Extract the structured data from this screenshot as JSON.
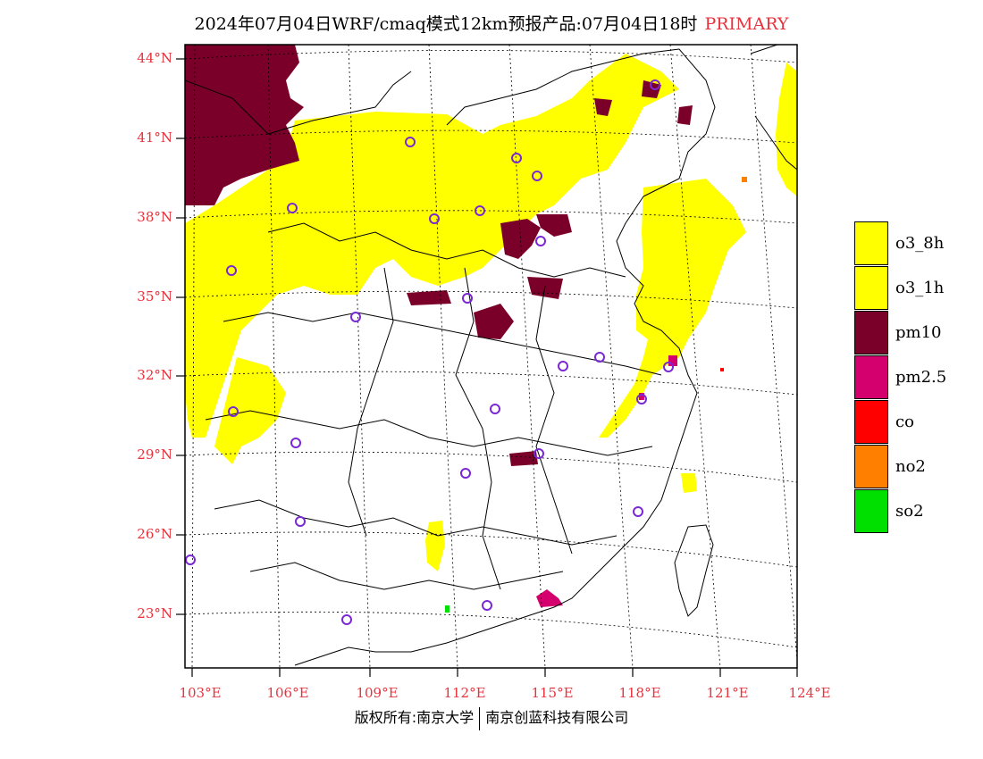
{
  "title": {
    "main": "2024年07月04日WRF/cmaq模式12km预报产品:07月04日18时",
    "tag": "PRIMARY"
  },
  "axes": {
    "lat_labels": [
      "44°N",
      "41°N",
      "38°N",
      "35°N",
      "32°N",
      "29°N",
      "26°N",
      "23°N"
    ],
    "lon_labels": [
      "103°E",
      "106°E",
      "109°E",
      "112°E",
      "115°E",
      "118°E",
      "121°E",
      "124°E"
    ]
  },
  "legend": [
    {
      "label": "o3_8h",
      "color": "#ffff00"
    },
    {
      "label": "o3_1h",
      "color": "#ffff00"
    },
    {
      "label": "pm10",
      "color": "#7a0029"
    },
    {
      "label": "pm2.5",
      "color": "#d4006e"
    },
    {
      "label": "co",
      "color": "#ff0000"
    },
    {
      "label": "no2",
      "color": "#ff7f00"
    },
    {
      "label": "so2",
      "color": "#00e000"
    }
  ],
  "footer": {
    "left": "版权所有:南京大学",
    "right": "南京创蓝科技有限公司"
  }
}
